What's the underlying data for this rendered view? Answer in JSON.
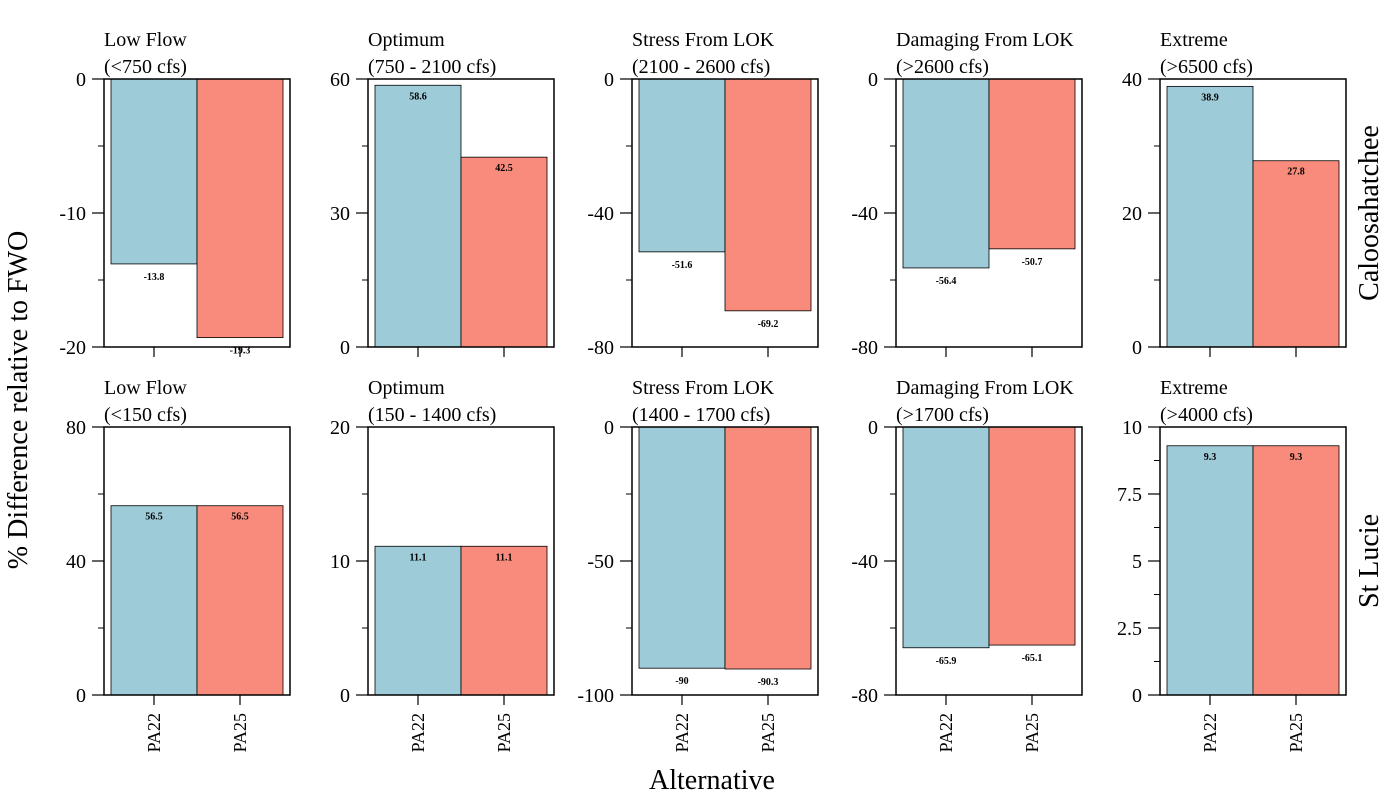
{
  "chart_data": {
    "type": "bar",
    "ylabel": "% Difference relative to FWO",
    "xlabel": "Alternative",
    "categories": [
      "PA22",
      "PA25"
    ],
    "series_colors": {
      "PA22": "#9ecbd8",
      "PA25": "#f88b7b"
    },
    "rows": [
      {
        "name": "Caloosahatchee",
        "panels": [
          {
            "title": "Low Flow",
            "subtitle": "(<750 cfs)",
            "values": [
              -13.8,
              -19.3
            ],
            "value_labels": [
              "-13.8",
              "-19.3"
            ],
            "ylim": [
              -20,
              0
            ],
            "yticks": [
              "0",
              "-10",
              "-20"
            ],
            "ytick_values": [
              0,
              -10,
              -20
            ],
            "minor_step": 5
          },
          {
            "title": "Optimum",
            "subtitle": "(750 - 2100 cfs)",
            "values": [
              58.6,
              42.5
            ],
            "value_labels": [
              "58.6",
              "42.5"
            ],
            "ylim": [
              0,
              60
            ],
            "yticks": [
              "60",
              "30",
              "0"
            ],
            "ytick_values": [
              60,
              30,
              0
            ],
            "minor_step": 15
          },
          {
            "title": "Stress From LOK",
            "subtitle": "(2100 - 2600 cfs)",
            "values": [
              -51.6,
              -69.2
            ],
            "value_labels": [
              "-51.6",
              "-69.2"
            ],
            "ylim": [
              -80,
              0
            ],
            "yticks": [
              "0",
              "-40",
              "-80"
            ],
            "ytick_values": [
              0,
              -40,
              -80
            ],
            "minor_step": 20
          },
          {
            "title": "Damaging From LOK",
            "subtitle": "(>2600 cfs)",
            "values": [
              -56.4,
              -50.7
            ],
            "value_labels": [
              "-56.4",
              "-50.7"
            ],
            "ylim": [
              -80,
              0
            ],
            "yticks": [
              "0",
              "-40",
              "-80"
            ],
            "ytick_values": [
              0,
              -40,
              -80
            ],
            "minor_step": 20
          },
          {
            "title": "Extreme",
            "subtitle": "(>6500 cfs)",
            "values": [
              38.9,
              27.8
            ],
            "value_labels": [
              "38.9",
              "27.8"
            ],
            "ylim": [
              0,
              40
            ],
            "yticks": [
              "40",
              "20",
              "0"
            ],
            "ytick_values": [
              40,
              20,
              0
            ],
            "minor_step": 10
          }
        ]
      },
      {
        "name": "St Lucie",
        "panels": [
          {
            "title": "Low Flow",
            "subtitle": "(<150 cfs)",
            "values": [
              56.5,
              56.5
            ],
            "value_labels": [
              "56.5",
              "56.5"
            ],
            "ylim": [
              0,
              80
            ],
            "yticks": [
              "80",
              "40",
              "0"
            ],
            "ytick_values": [
              80,
              40,
              0
            ],
            "minor_step": 20
          },
          {
            "title": "Optimum",
            "subtitle": "(150 - 1400 cfs)",
            "values": [
              11.1,
              11.1
            ],
            "value_labels": [
              "11.1",
              "11.1"
            ],
            "ylim": [
              0,
              20
            ],
            "yticks": [
              "20",
              "10",
              "0"
            ],
            "ytick_values": [
              20,
              10,
              0
            ],
            "minor_step": 5
          },
          {
            "title": "Stress From LOK",
            "subtitle": "(1400 - 1700 cfs)",
            "values": [
              -90.0,
              -90.3
            ],
            "value_labels": [
              "-90",
              "-90.3"
            ],
            "ylim": [
              -100,
              0
            ],
            "yticks": [
              "0",
              "-50",
              "-100"
            ],
            "ytick_values": [
              0,
              -50,
              -100
            ],
            "minor_step": 25
          },
          {
            "title": "Damaging From LOK",
            "subtitle": "(>1700 cfs)",
            "values": [
              -65.9,
              -65.1
            ],
            "value_labels": [
              "-65.9",
              "-65.1"
            ],
            "ylim": [
              -80,
              0
            ],
            "yticks": [
              "0",
              "-40",
              "-80"
            ],
            "ytick_values": [
              0,
              -40,
              -80
            ],
            "minor_step": 20
          },
          {
            "title": "Extreme",
            "subtitle": "(>4000 cfs)",
            "values": [
              9.3,
              9.3
            ],
            "value_labels": [
              "9.3",
              "9.3"
            ],
            "ylim": [
              0,
              10
            ],
            "yticks": [
              "10",
              "7.5",
              "5",
              "2.5",
              "0"
            ],
            "ytick_values": [
              10,
              7.5,
              5,
              2.5,
              0
            ],
            "minor_step": 1.25
          }
        ]
      }
    ]
  }
}
